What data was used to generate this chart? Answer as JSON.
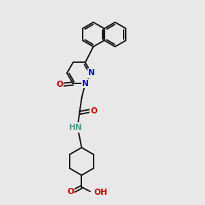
{
  "background_color": "#e8e8e8",
  "bond_color": "#1a1a1a",
  "bond_width": 1.5,
  "atom_colors": {
    "N": "#0000cc",
    "O": "#cc0000",
    "H_N": "#4a9a8a",
    "C": "#1a1a1a"
  },
  "font_size": 8.5,
  "figsize": [
    3.0,
    3.0
  ],
  "dpi": 100,
  "xlim": [
    0,
    10
  ],
  "ylim": [
    0,
    10
  ]
}
